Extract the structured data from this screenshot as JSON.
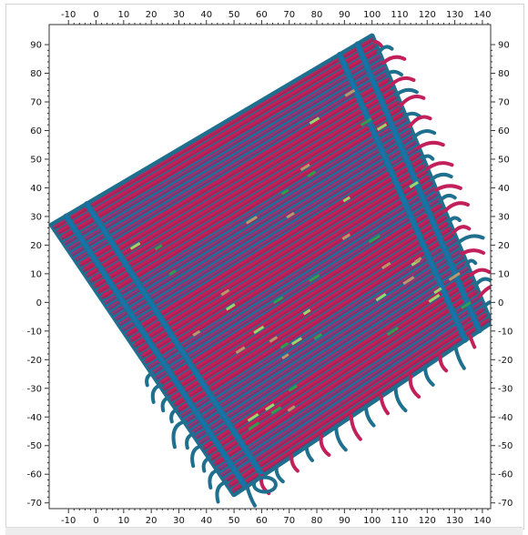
{
  "viewer": {
    "x_ticks": [
      -10,
      0,
      10,
      20,
      30,
      40,
      50,
      60,
      70,
      80,
      90,
      100,
      110,
      120,
      130,
      140
    ],
    "y_ticks": [
      90,
      80,
      70,
      60,
      50,
      40,
      30,
      20,
      10,
      0,
      -10,
      -20,
      -30,
      -40,
      -50,
      -60,
      -70
    ],
    "x_range": [
      -17,
      143
    ],
    "y_range": [
      -72,
      97
    ],
    "colors": {
      "magenta": "#c2205a",
      "teal": "#1f6f8f",
      "blue": "#1673b1",
      "green": "#2e9e4f",
      "light_green": "#9bd86b",
      "tan": "#b89a6a",
      "axis": "#333333"
    }
  },
  "chart_data": {
    "type": "scatter",
    "title": "",
    "xlabel": "",
    "ylabel": "",
    "xlim": [
      -17,
      143
    ],
    "ylim": [
      -72,
      97
    ],
    "grid": false,
    "axes": [
      "top",
      "bottom",
      "left",
      "right"
    ],
    "description_fields": {
      "rotated_square_corners": [
        [
          -16,
          27
        ],
        [
          50,
          -67
        ],
        [
          143,
          -7
        ],
        [
          100,
          93
        ]
      ]
    },
    "series": [
      {
        "color": "magenta"
      },
      {
        "color": "teal"
      }
    ]
  }
}
